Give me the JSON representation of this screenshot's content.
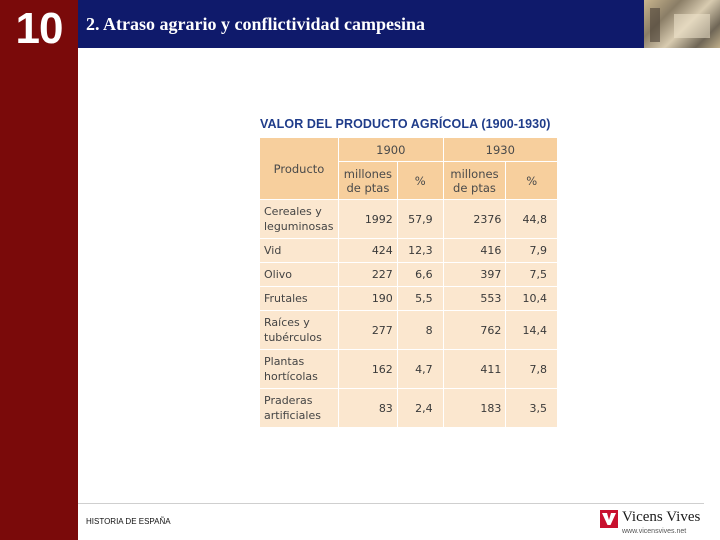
{
  "chapter": {
    "number": "10"
  },
  "header": {
    "title": "2. Atraso agrario y conflictividad campesina"
  },
  "table": {
    "title": "VALOR DEL PRODUCTO AGRÍCOLA (1900-1930)",
    "header_product": "Producto",
    "years": [
      "1900",
      "1930"
    ],
    "sub_headers": [
      "millones de ptas",
      "%",
      "millones de ptas",
      "%"
    ],
    "rows": [
      {
        "product": "Cereales y leguminosas",
        "values": [
          "1992",
          "57,9",
          "2376",
          "44,8"
        ]
      },
      {
        "product": "Vid",
        "values": [
          "424",
          "12,3",
          "416",
          "7,9"
        ]
      },
      {
        "product": "Olivo",
        "values": [
          "227",
          "6,6",
          "397",
          "7,5"
        ]
      },
      {
        "product": "Frutales",
        "values": [
          "190",
          "5,5",
          "553",
          "10,4"
        ]
      },
      {
        "product": "Raíces y tubérculos",
        "values": [
          "277",
          "8",
          "762",
          "14,4"
        ]
      },
      {
        "product": "Plantas hortícolas",
        "values": [
          "162",
          "4,7",
          "411",
          "7,8"
        ]
      },
      {
        "product": "Praderas artificiales",
        "values": [
          "83",
          "2,4",
          "183",
          "3,5"
        ]
      }
    ]
  },
  "footer": {
    "text": "HISTORIA DE ESPAÑA",
    "logo_name": "Vicens Vives",
    "logo_url": "www.vicensvives.net"
  },
  "colors": {
    "sidebar": "#7a0a0a",
    "header": "#0f1a6b",
    "table_header": "#f7cf9d",
    "table_body": "#fbe7cf",
    "title_blue": "#1f3c8a",
    "logo_red": "#c8102e"
  }
}
